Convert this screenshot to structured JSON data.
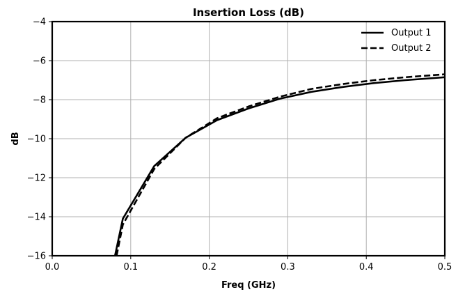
{
  "chart_data": {
    "type": "line",
    "title": "Insertion Loss (dB)",
    "xlabel": "Freq (GHz)",
    "ylabel": "dB",
    "xlim": [
      0.0,
      0.5
    ],
    "ylim": [
      -16,
      -4
    ],
    "x_ticks": [
      0.0,
      0.1,
      0.2,
      0.3,
      0.4,
      0.5
    ],
    "x_tick_labels": [
      "0.0",
      "0.1",
      "0.2",
      "0.3",
      "0.4",
      "0.5"
    ],
    "y_ticks": [
      -16,
      -14,
      -12,
      -10,
      -8,
      -6,
      -4
    ],
    "y_tick_labels": [
      "−16",
      "−14",
      "−12",
      "−10",
      "−8",
      "−6",
      "−4"
    ],
    "grid": true,
    "legend_position": "top-right",
    "series": [
      {
        "name": "Output 1",
        "line_style": "solid",
        "color": "#000000",
        "x": [
          0.08,
          0.09,
          0.13,
          0.17,
          0.21,
          0.25,
          0.29,
          0.33,
          0.37,
          0.41,
          0.45,
          0.5
        ],
        "y": [
          -16.0,
          -14.1,
          -11.4,
          -9.95,
          -9.05,
          -8.45,
          -7.95,
          -7.6,
          -7.35,
          -7.15,
          -7.0,
          -6.85
        ]
      },
      {
        "name": "Output 2",
        "line_style": "dashed",
        "color": "#000000",
        "x": [
          0.082,
          0.09,
          0.13,
          0.17,
          0.21,
          0.25,
          0.29,
          0.33,
          0.37,
          0.41,
          0.45,
          0.5
        ],
        "y": [
          -16.0,
          -14.4,
          -11.55,
          -9.95,
          -8.95,
          -8.35,
          -7.85,
          -7.45,
          -7.2,
          -7.0,
          -6.85,
          -6.7
        ]
      }
    ]
  }
}
